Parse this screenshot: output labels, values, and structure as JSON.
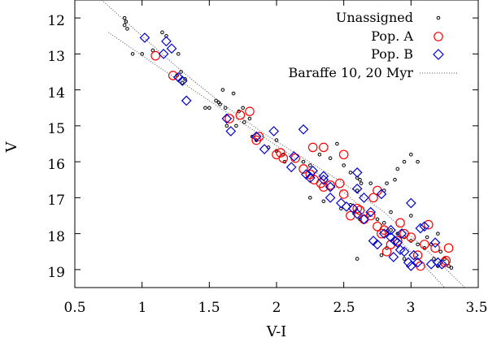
{
  "chart_data": {
    "type": "scatter",
    "title": "",
    "xlabel": "V-I",
    "ylabel": "V",
    "xlim": [
      0.5,
      3.5
    ],
    "ylim": [
      11.5,
      19.5
    ],
    "y_inverted": true,
    "xticks": [
      "0.5",
      "1",
      "1.5",
      "2",
      "2.5",
      "3",
      "3.5"
    ],
    "yticks": [
      "12",
      "13",
      "14",
      "15",
      "16",
      "17",
      "18",
      "19"
    ],
    "legend_position": "top-right",
    "colors": {
      "unassigned": "#000000",
      "pop_a": "#ff0000",
      "pop_b": "#0000cc",
      "isochrone": "#555555"
    },
    "series": [
      {
        "name": "Unassigned",
        "marker": "small-circle",
        "points": [
          [
            0.87,
            12.0
          ],
          [
            0.88,
            12.1
          ],
          [
            0.87,
            12.2
          ],
          [
            0.89,
            12.3
          ],
          [
            0.93,
            13.0
          ],
          [
            1.0,
            13.0
          ],
          [
            1.08,
            12.9
          ],
          [
            1.15,
            12.4
          ],
          [
            1.18,
            12.5
          ],
          [
            1.27,
            13.0
          ],
          [
            1.29,
            13.5
          ],
          [
            1.26,
            13.6
          ],
          [
            1.32,
            13.7
          ],
          [
            1.3,
            13.8
          ],
          [
            1.47,
            14.5
          ],
          [
            1.5,
            14.5
          ],
          [
            1.55,
            14.3
          ],
          [
            1.57,
            14.35
          ],
          [
            1.58,
            14.4
          ],
          [
            1.6,
            14.0
          ],
          [
            1.62,
            14.5
          ],
          [
            1.68,
            14.1
          ],
          [
            1.72,
            14.6
          ],
          [
            1.75,
            14.5
          ],
          [
            1.8,
            14.8
          ],
          [
            1.76,
            14.9
          ],
          [
            1.63,
            15.0
          ],
          [
            1.7,
            15.0
          ],
          [
            1.82,
            15.3
          ],
          [
            1.85,
            15.4
          ],
          [
            1.94,
            15.6
          ],
          [
            2.0,
            15.7
          ],
          [
            2.0,
            15.4
          ],
          [
            2.05,
            15.8
          ],
          [
            2.06,
            16.0
          ],
          [
            2.2,
            16.0
          ],
          [
            2.25,
            16.1
          ],
          [
            2.32,
            15.8
          ],
          [
            2.4,
            15.9
          ],
          [
            2.45,
            15.5
          ],
          [
            2.5,
            16.1
          ],
          [
            2.55,
            16.3
          ],
          [
            2.6,
            16.45
          ],
          [
            2.62,
            16.5
          ],
          [
            2.63,
            16.6
          ],
          [
            2.6,
            16.8
          ],
          [
            2.7,
            16.6
          ],
          [
            2.8,
            16.8
          ],
          [
            2.82,
            16.6
          ],
          [
            2.88,
            16.5
          ],
          [
            2.9,
            16.2
          ],
          [
            2.95,
            16.0
          ],
          [
            3.0,
            15.8
          ],
          [
            3.05,
            16.0
          ],
          [
            2.25,
            17.0
          ],
          [
            2.35,
            17.1
          ],
          [
            2.48,
            17.3
          ],
          [
            2.55,
            17.2
          ],
          [
            2.58,
            17.4
          ],
          [
            2.62,
            17.6
          ],
          [
            2.68,
            17.5
          ],
          [
            2.75,
            17.6
          ],
          [
            2.8,
            17.7
          ],
          [
            2.85,
            17.9
          ],
          [
            2.9,
            18.0
          ],
          [
            2.95,
            18.1
          ],
          [
            3.0,
            18.2
          ],
          [
            3.05,
            18.3
          ],
          [
            3.1,
            18.4
          ],
          [
            3.12,
            18.1
          ],
          [
            3.15,
            18.3
          ],
          [
            3.17,
            18.7
          ],
          [
            3.2,
            18.0
          ],
          [
            3.22,
            18.5
          ],
          [
            3.25,
            18.7
          ],
          [
            3.28,
            18.9
          ],
          [
            3.3,
            18.95
          ],
          [
            3.2,
            18.9
          ],
          [
            2.78,
            18.6
          ],
          [
            2.82,
            18.4
          ],
          [
            2.95,
            18.7
          ],
          [
            2.6,
            18.7
          ],
          [
            2.85,
            17.4
          ],
          [
            3.0,
            17.5
          ]
        ]
      },
      {
        "name": "Pop. A",
        "marker": "open-circle",
        "points": [
          [
            1.1,
            13.05
          ],
          [
            1.23,
            13.6
          ],
          [
            1.65,
            14.8
          ],
          [
            1.73,
            14.7
          ],
          [
            1.8,
            14.6
          ],
          [
            1.87,
            15.3
          ],
          [
            1.85,
            15.4
          ],
          [
            2.0,
            15.8
          ],
          [
            2.03,
            15.75
          ],
          [
            2.05,
            15.9
          ],
          [
            2.14,
            15.9
          ],
          [
            2.2,
            16.2
          ],
          [
            2.28,
            16.5
          ],
          [
            2.25,
            16.35
          ],
          [
            2.33,
            16.6
          ],
          [
            2.35,
            16.7
          ],
          [
            2.4,
            16.65
          ],
          [
            2.47,
            16.6
          ],
          [
            2.5,
            16.9
          ],
          [
            2.27,
            15.6
          ],
          [
            2.35,
            15.6
          ],
          [
            2.5,
            15.8
          ],
          [
            2.55,
            17.5
          ],
          [
            2.6,
            17.3
          ],
          [
            2.62,
            17.35
          ],
          [
            2.65,
            17.6
          ],
          [
            2.7,
            17.5
          ],
          [
            2.72,
            17.0
          ],
          [
            2.75,
            16.8
          ],
          [
            2.75,
            17.8
          ],
          [
            2.78,
            18.0
          ],
          [
            2.8,
            17.9
          ],
          [
            2.85,
            18.3
          ],
          [
            2.9,
            18.2
          ],
          [
            2.92,
            17.7
          ],
          [
            2.95,
            18.0
          ],
          [
            3.0,
            18.1
          ],
          [
            3.05,
            18.6
          ],
          [
            3.07,
            18.9
          ],
          [
            3.1,
            18.3
          ],
          [
            3.13,
            17.75
          ],
          [
            3.18,
            18.4
          ],
          [
            3.25,
            18.8
          ],
          [
            3.28,
            18.4
          ],
          [
            3.26,
            18.75
          ],
          [
            2.82,
            18.5
          ]
        ]
      },
      {
        "name": "Pop. B",
        "marker": "open-diamond",
        "points": [
          [
            1.02,
            12.55
          ],
          [
            1.16,
            13.0
          ],
          [
            1.18,
            12.65
          ],
          [
            1.22,
            12.85
          ],
          [
            1.27,
            13.65
          ],
          [
            1.3,
            13.75
          ],
          [
            1.33,
            14.3
          ],
          [
            1.63,
            14.8
          ],
          [
            1.66,
            15.15
          ],
          [
            1.85,
            15.3
          ],
          [
            1.91,
            15.65
          ],
          [
            1.98,
            15.15
          ],
          [
            2.11,
            16.15
          ],
          [
            2.13,
            15.85
          ],
          [
            2.2,
            15.1
          ],
          [
            2.22,
            16.35
          ],
          [
            2.25,
            16.45
          ],
          [
            2.27,
            16.25
          ],
          [
            2.35,
            16.5
          ],
          [
            2.4,
            16.7
          ],
          [
            2.4,
            17.0
          ],
          [
            2.48,
            17.15
          ],
          [
            2.52,
            17.25
          ],
          [
            2.57,
            17.3
          ],
          [
            2.6,
            17.45
          ],
          [
            2.65,
            17.6
          ],
          [
            2.7,
            17.4
          ],
          [
            2.72,
            18.2
          ],
          [
            2.75,
            18.3
          ],
          [
            2.78,
            16.9
          ],
          [
            2.8,
            18.0
          ],
          [
            2.85,
            17.9
          ],
          [
            2.85,
            18.1
          ],
          [
            2.88,
            18.2
          ],
          [
            2.9,
            18.25
          ],
          [
            2.92,
            18.45
          ],
          [
            2.95,
            18.5
          ],
          [
            2.98,
            18.8
          ],
          [
            3.0,
            18.9
          ],
          [
            3.02,
            18.6
          ],
          [
            3.05,
            18.8
          ],
          [
            3.07,
            17.85
          ],
          [
            3.1,
            17.8
          ],
          [
            3.15,
            18.85
          ],
          [
            3.2,
            18.8
          ],
          [
            3.23,
            18.85
          ],
          [
            3.18,
            18.25
          ],
          [
            2.87,
            18.65
          ],
          [
            2.93,
            18.0
          ],
          [
            3.0,
            17.15
          ],
          [
            2.6,
            16.75
          ],
          [
            2.65,
            17.0
          ],
          [
            2.6,
            16.3
          ],
          [
            2.35,
            16.4
          ]
        ]
      },
      {
        "name": "Baraffe 10, 20 Myr",
        "marker": "dotted-line",
        "lines": [
          [
            [
              0.7,
              11.5
            ],
            [
              1.0,
              12.5
            ],
            [
              1.3,
              13.5
            ],
            [
              1.6,
              14.4
            ],
            [
              1.9,
              15.2
            ],
            [
              2.2,
              15.9
            ],
            [
              2.5,
              16.6
            ],
            [
              2.8,
              17.4
            ],
            [
              3.1,
              18.4
            ],
            [
              3.4,
              19.5
            ]
          ],
          [
            [
              0.75,
              12.4
            ],
            [
              1.1,
              13.3
            ],
            [
              1.5,
              14.3
            ],
            [
              1.9,
              15.3
            ],
            [
              2.2,
              16.05
            ],
            [
              2.5,
              16.85
            ],
            [
              2.8,
              17.8
            ],
            [
              3.0,
              18.5
            ],
            [
              3.25,
              19.5
            ]
          ]
        ]
      }
    ]
  }
}
